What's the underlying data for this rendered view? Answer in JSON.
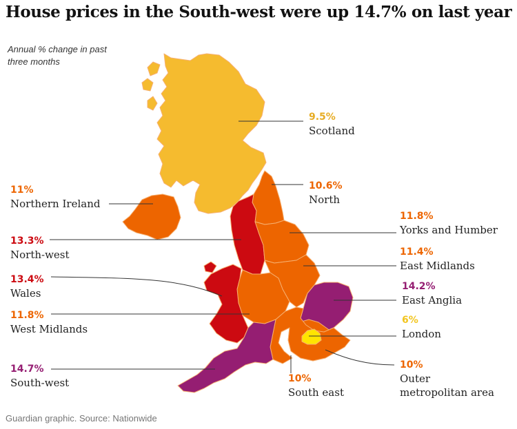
{
  "header": {
    "title": "House prices in the South-west were up 14.7% on last year",
    "subtitle": "Annual % change in past three months"
  },
  "footer": {
    "source": "Guardian graphic. Source: Nationwide"
  },
  "colors": {
    "under_10": "#f5bb2f",
    "10_to_12": "#ed6500",
    "12_to_14": "#cc0a11",
    "over_14": "#951e72",
    "london": "#ffe500",
    "border": "#f4a460"
  },
  "regions": [
    {
      "id": "scotland",
      "name": "Scotland",
      "value": "9.5%",
      "color": "#f5bb2f",
      "label_color": "#e7ac23"
    },
    {
      "id": "north",
      "name": "North",
      "value": "10.6%",
      "color": "#ed6500",
      "label_color": "#ed6500"
    },
    {
      "id": "northern-ireland",
      "name": "Northern Ireland",
      "value": "11%",
      "color": "#ed6500",
      "label_color": "#ed6500"
    },
    {
      "id": "yorks-humber",
      "name": "Yorks and Humber",
      "value": "11.8%",
      "color": "#ed6500",
      "label_color": "#ed6500"
    },
    {
      "id": "north-west",
      "name": "North-west",
      "value": "13.3%",
      "color": "#cc0a11",
      "label_color": "#cc0a11"
    },
    {
      "id": "east-midlands",
      "name": "East Midlands",
      "value": "11.4%",
      "color": "#ed6500",
      "label_color": "#ed6500"
    },
    {
      "id": "wales",
      "name": "Wales",
      "value": "13.4%",
      "color": "#cc0a11",
      "label_color": "#cc0a11"
    },
    {
      "id": "east-anglia",
      "name": "East Anglia",
      "value": "14.2%",
      "color": "#951e72",
      "label_color": "#951e72"
    },
    {
      "id": "west-midlands",
      "name": "West Midlands",
      "value": "11.8%",
      "color": "#ed6500",
      "label_color": "#ed6500"
    },
    {
      "id": "london",
      "name": "London",
      "value": "6%",
      "color": "#ffe500",
      "label_color": "#f2c51f"
    },
    {
      "id": "outer-metropolitan",
      "name": "Outer",
      "name2": "metropolitan area",
      "value": "10%",
      "color": "#ed6500",
      "label_color": "#ed6500"
    },
    {
      "id": "south-west",
      "name": "South-west",
      "value": "14.7%",
      "color": "#951e72",
      "label_color": "#951e72"
    },
    {
      "id": "south-east",
      "name": "South east",
      "value": "10%",
      "color": "#ed6500",
      "label_color": "#ed6500"
    }
  ]
}
